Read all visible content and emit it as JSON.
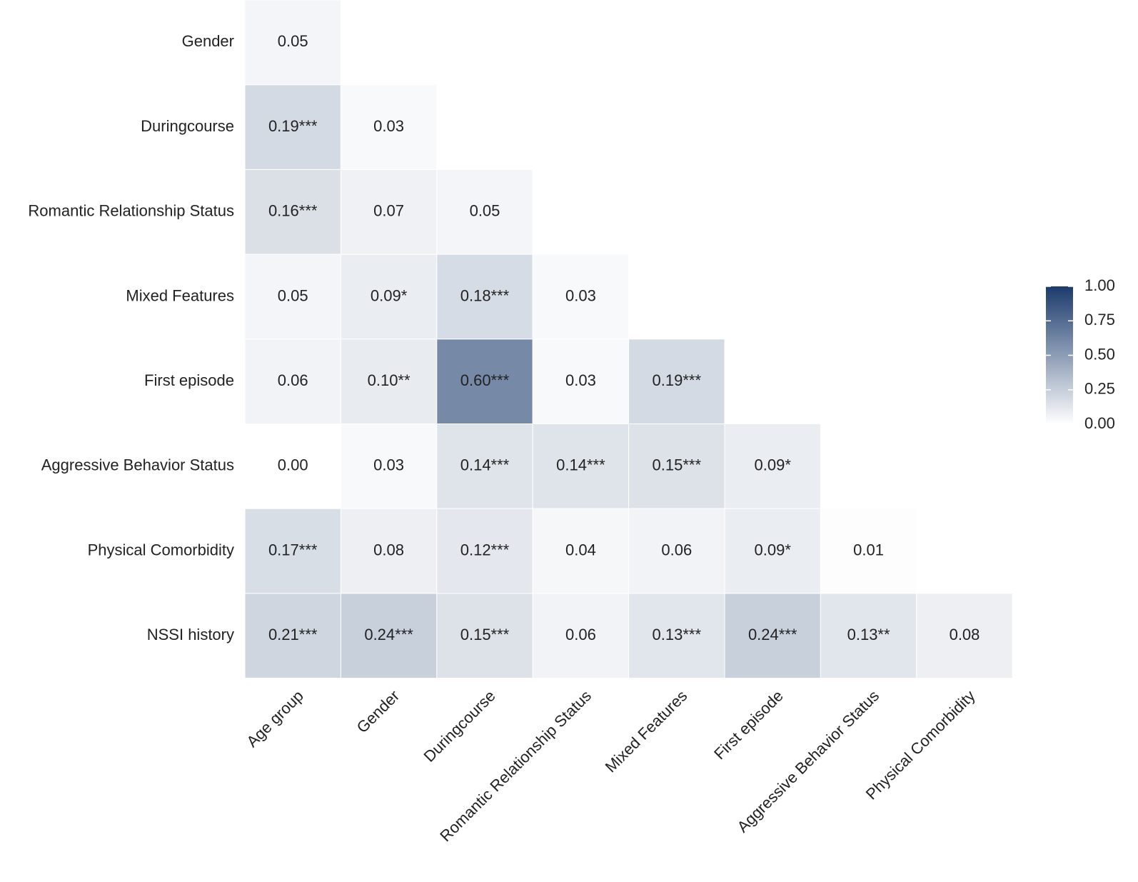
{
  "chart_data": {
    "type": "heatmap",
    "x_categories": [
      "Age group",
      "Gender",
      "Duringcourse",
      "Romantic Relationship Status",
      "Mixed Features",
      "First episode",
      "Aggressive Behavior Status",
      "Physical Comorbidity"
    ],
    "y_categories": [
      "Gender",
      "Duringcourse",
      "Romantic Relationship Status",
      "Mixed Features",
      "First episode",
      "Aggressive Behavior Status",
      "Physical Comorbidity",
      "NSSI history"
    ],
    "values": [
      [
        0.05,
        null,
        null,
        null,
        null,
        null,
        null,
        null
      ],
      [
        0.19,
        0.03,
        null,
        null,
        null,
        null,
        null,
        null
      ],
      [
        0.16,
        0.07,
        0.05,
        null,
        null,
        null,
        null,
        null
      ],
      [
        0.05,
        0.09,
        0.18,
        0.03,
        null,
        null,
        null,
        null
      ],
      [
        0.06,
        0.1,
        0.6,
        0.03,
        0.19,
        null,
        null,
        null
      ],
      [
        0.0,
        0.03,
        0.14,
        0.14,
        0.15,
        0.09,
        null,
        null
      ],
      [
        0.17,
        0.08,
        0.12,
        0.04,
        0.06,
        0.09,
        0.01,
        null
      ],
      [
        0.21,
        0.24,
        0.15,
        0.06,
        0.13,
        0.24,
        0.13,
        0.08
      ]
    ],
    "value_labels": [
      [
        "0.05",
        null,
        null,
        null,
        null,
        null,
        null,
        null
      ],
      [
        "0.19***",
        "0.03",
        null,
        null,
        null,
        null,
        null,
        null
      ],
      [
        "0.16***",
        "0.07",
        "0.05",
        null,
        null,
        null,
        null,
        null
      ],
      [
        "0.05",
        "0.09*",
        "0.18***",
        "0.03",
        null,
        null,
        null,
        null
      ],
      [
        "0.06",
        "0.10**",
        "0.60***",
        "0.03",
        "0.19***",
        null,
        null,
        null
      ],
      [
        "0.00",
        "0.03",
        "0.14***",
        "0.14***",
        "0.15***",
        "0.09*",
        null,
        null
      ],
      [
        "0.17***",
        "0.08",
        "0.12***",
        "0.04",
        "0.06",
        "0.09*",
        "0.01",
        null
      ],
      [
        "0.21***",
        "0.24***",
        "0.15***",
        "0.06",
        "0.13***",
        "0.24***",
        "0.13**",
        "0.08"
      ]
    ],
    "colorlim": [
      0,
      1
    ],
    "colors": [
      "#ffffff",
      "#1b3b6c"
    ],
    "colorticks": [
      {
        "value": 0,
        "label": "0.00"
      },
      {
        "value": 0.25,
        "label": "0.25"
      },
      {
        "value": 0.5,
        "label": "0.50"
      },
      {
        "value": 0.75,
        "label": "0.75"
      },
      {
        "value": 1,
        "label": "1.00"
      }
    ]
  }
}
